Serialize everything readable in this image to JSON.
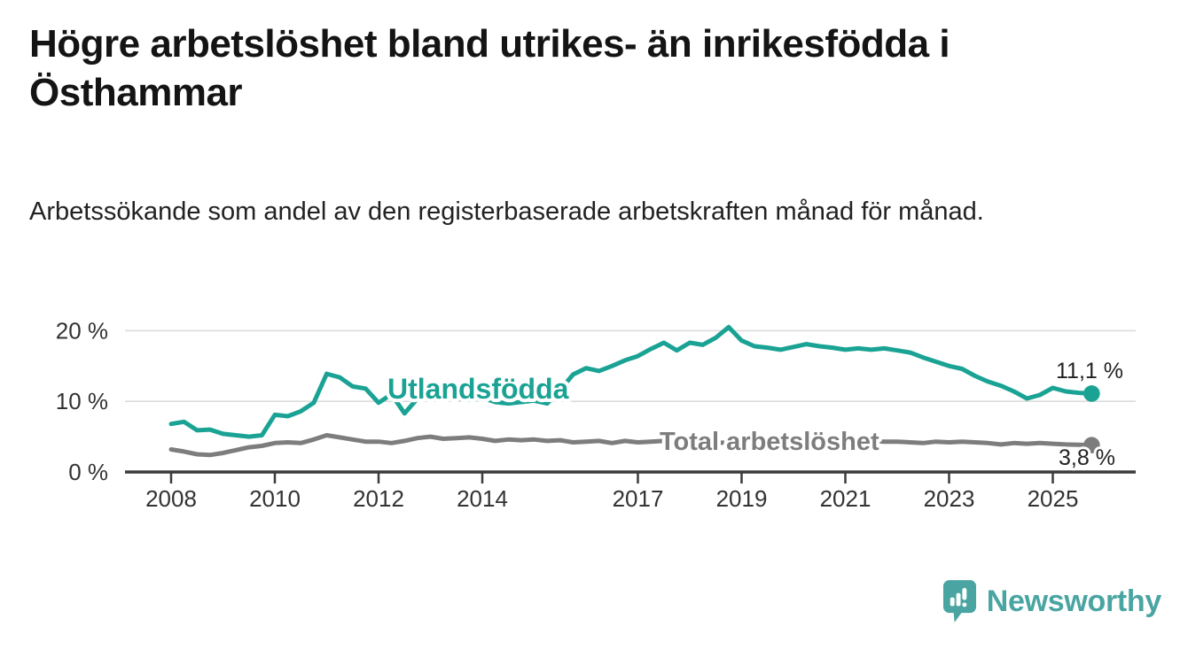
{
  "title": "Högre arbetslöshet bland utrikes- än inrikesfödda i Östhammar",
  "subtitle": "Arbetssökande som andel av den registerbaserade arbetskraften månad för månad.",
  "chart_data": {
    "type": "line",
    "x_start": 2008,
    "x_step": 0.25,
    "xlim": [
      2007.2,
      2026.6
    ],
    "ylim": [
      0,
      22.5
    ],
    "grid": "horizontal",
    "x_ticks": [
      2008,
      2010,
      2012,
      2014,
      2017,
      2019,
      2021,
      2023,
      2025
    ],
    "y_ticks": [
      {
        "value": 0,
        "label": "0 %"
      },
      {
        "value": 10,
        "label": "10 %"
      },
      {
        "value": 20,
        "label": "20 %"
      }
    ],
    "series": [
      {
        "name": "Utlandsfödda",
        "color": "#1aa394",
        "end_label": "11,1 %",
        "end_value": 11.1,
        "values": [
          6.8,
          7.1,
          5.9,
          6.0,
          5.4,
          5.2,
          5.0,
          5.2,
          8.1,
          7.9,
          8.6,
          9.8,
          13.9,
          13.4,
          12.1,
          11.8,
          9.8,
          11.0,
          8.3,
          10.4,
          10.6,
          10.9,
          10.4,
          10.2,
          10.5,
          9.9,
          9.7,
          9.9,
          10.1,
          9.7,
          11.6,
          13.8,
          14.7,
          14.3,
          15.0,
          15.8,
          16.4,
          17.4,
          18.3,
          17.2,
          18.3,
          18.0,
          19.0,
          20.5,
          18.6,
          17.8,
          17.6,
          17.3,
          17.7,
          18.1,
          17.8,
          17.6,
          17.3,
          17.5,
          17.3,
          17.5,
          17.2,
          16.9,
          16.2,
          15.6,
          15.0,
          14.6,
          13.6,
          12.8,
          12.2,
          11.4,
          10.4,
          10.9,
          11.9,
          11.4,
          11.2,
          11.1
        ]
      },
      {
        "name": "Total arbetslöshet",
        "color": "#7d7d7d",
        "end_label": "3,8 %",
        "end_value": 3.8,
        "values": [
          3.2,
          2.9,
          2.5,
          2.4,
          2.7,
          3.1,
          3.5,
          3.7,
          4.1,
          4.2,
          4.1,
          4.6,
          5.2,
          4.9,
          4.6,
          4.3,
          4.3,
          4.1,
          4.4,
          4.8,
          5.0,
          4.7,
          4.8,
          4.9,
          4.7,
          4.4,
          4.6,
          4.5,
          4.6,
          4.4,
          4.5,
          4.2,
          4.3,
          4.4,
          4.1,
          4.4,
          4.2,
          4.3,
          4.4,
          4.3,
          4.2,
          4.0,
          4.1,
          4.2,
          4.1,
          4.0,
          4.2,
          4.3,
          4.4,
          4.9,
          4.8,
          4.6,
          4.6,
          4.5,
          4.4,
          4.3,
          4.3,
          4.2,
          4.1,
          4.3,
          4.2,
          4.3,
          4.2,
          4.1,
          3.9,
          4.1,
          4.0,
          4.1,
          4.0,
          3.9,
          3.85,
          3.8
        ]
      }
    ]
  },
  "colors": {
    "grid": "#dcdcdc",
    "axis": "#3b3b3b",
    "tick_text": "#333333",
    "end_label_text": "#222222"
  },
  "footer": {
    "brand": "Newsworthy",
    "logo_color": "#4aa5a2"
  }
}
